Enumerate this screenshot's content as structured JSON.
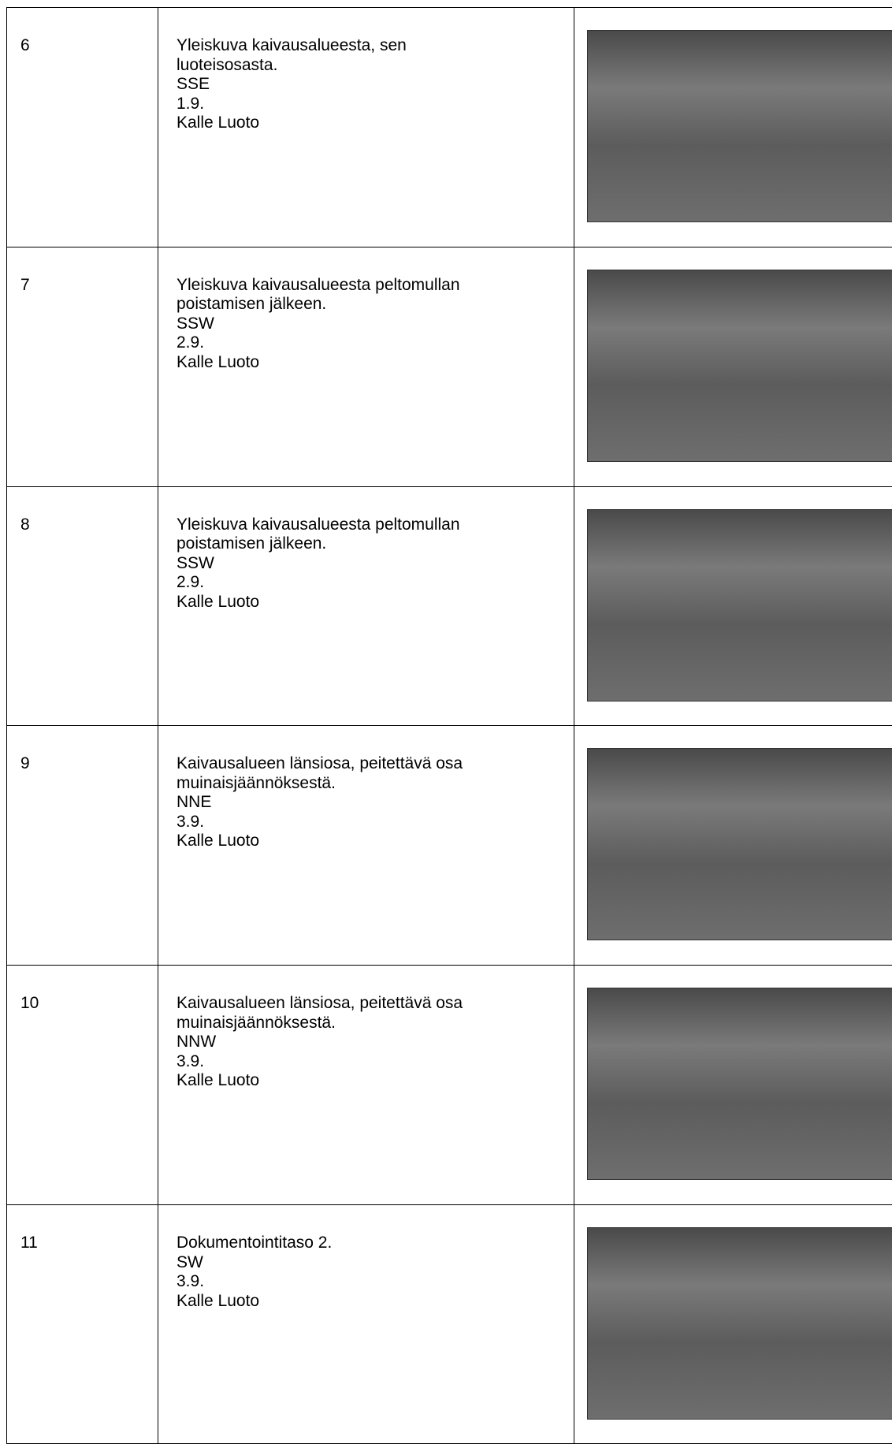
{
  "table": {
    "rows": [
      {
        "number": "6",
        "lines": [
          "Yleiskuva kaivausalueesta, sen",
          "luoteisosasta.",
          "SSE",
          "1.9.",
          "Kalle Luoto"
        ]
      },
      {
        "number": "7",
        "lines": [
          "Yleiskuva kaivausalueesta peltomullan",
          "poistamisen jälkeen.",
          "SSW",
          "2.9.",
          "Kalle Luoto"
        ]
      },
      {
        "number": "8",
        "lines": [
          "Yleiskuva kaivausalueesta peltomullan",
          "poistamisen jälkeen.",
          "SSW",
          "2.9.",
          "Kalle Luoto"
        ]
      },
      {
        "number": "9",
        "lines": [
          "Kaivausalueen länsiosa, peitettävä osa",
          "muinaisjäännöksestä.",
          "NNE",
          "3.9.",
          "Kalle Luoto"
        ]
      },
      {
        "number": "10",
        "lines": [
          "Kaivausalueen länsiosa, peitettävä osa",
          "muinaisjäännöksestä.",
          "NNW",
          "3.9.",
          "Kalle Luoto"
        ]
      },
      {
        "number": "11",
        "lines": [
          "Dokumentointitaso 2.",
          "SW",
          "3.9.",
          "Kalle Luoto"
        ]
      }
    ]
  }
}
